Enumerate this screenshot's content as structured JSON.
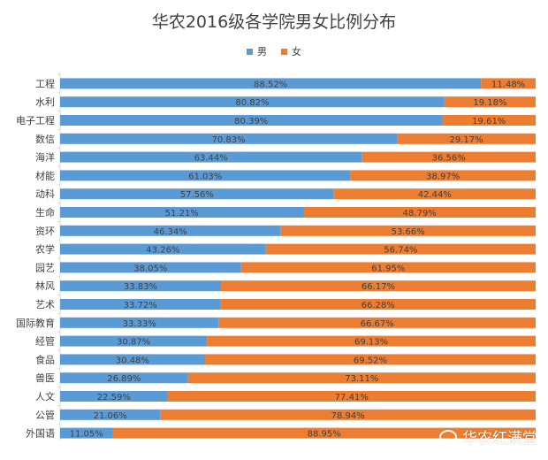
{
  "chart_data": {
    "type": "bar",
    "orientation": "horizontal",
    "stacked": true,
    "normalized": true,
    "title": "华农2016级各学院男女比例分布",
    "categories": [
      "工程",
      "水利",
      "电子工程",
      "数信",
      "海洋",
      "材能",
      "动科",
      "生命",
      "资环",
      "农学",
      "园艺",
      "林风",
      "艺术",
      "国际教育",
      "经管",
      "食品",
      "兽医",
      "人文",
      "公管",
      "外国语"
    ],
    "series": [
      {
        "name": "男",
        "color": "#5b9bd5",
        "values": [
          88.52,
          80.82,
          80.39,
          70.83,
          63.44,
          61.03,
          57.56,
          51.21,
          46.34,
          43.26,
          38.05,
          33.83,
          33.72,
          33.33,
          30.87,
          30.48,
          26.89,
          22.59,
          21.06,
          11.05
        ],
        "labels": [
          "88.52%",
          "80.82%",
          "80.39%",
          "70.83%",
          "63.44%",
          "61.03%",
          "57.56%",
          "51.21%",
          "46.34%",
          "43.26%",
          "38.05%",
          "33.83%",
          "33.72%",
          "33.33%",
          "30.87%",
          "30.48%",
          "26.89%",
          "22.59%",
          "21.06%",
          "11.05%"
        ]
      },
      {
        "name": "女",
        "color": "#ed7d31",
        "values": [
          11.48,
          19.18,
          19.61,
          29.17,
          36.56,
          38.97,
          42.44,
          48.79,
          53.66,
          56.74,
          61.95,
          66.17,
          66.28,
          66.67,
          69.13,
          69.52,
          73.11,
          77.41,
          78.94,
          88.95
        ],
        "labels": [
          "11.48%",
          "19.18%",
          "19.61%",
          "29.17%",
          "36.56%",
          "38.97%",
          "42.44%",
          "48.79%",
          "53.66%",
          "56.74%",
          "61.95%",
          "66.17%",
          "66.28%",
          "66.67%",
          "69.13%",
          "69.52%",
          "73.11%",
          "77.41%",
          "78.94%",
          "88.95%"
        ]
      }
    ],
    "xlim": [
      0,
      100
    ],
    "legend_position": "top-center"
  },
  "watermark": "华农红满堂"
}
